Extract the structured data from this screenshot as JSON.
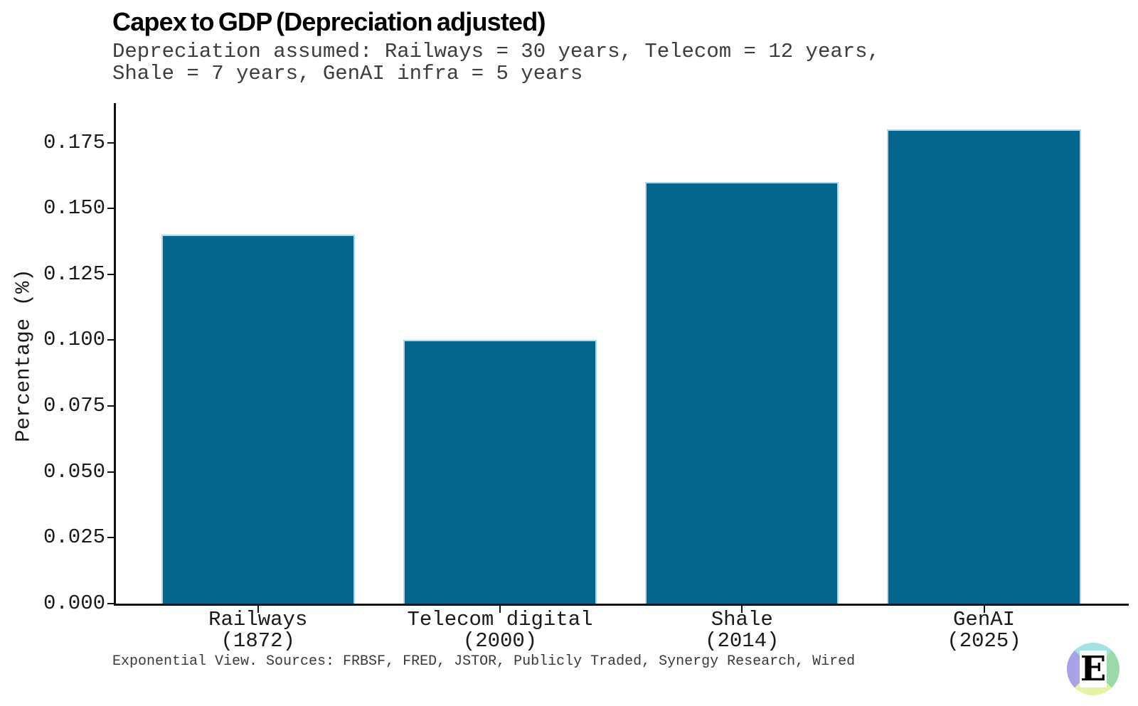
{
  "chart_data": {
    "type": "bar",
    "title": "Capex to GDP (Depreciation adjusted)",
    "subtitle": "Depreciation assumed: Railways = 30 years, Telecom = 12 years,\nShale = 7 years, GenAI infra = 5 years",
    "ylabel": "Percentage (%)",
    "xlabel": "",
    "categories": [
      {
        "label": "Railways",
        "year": "(1872)"
      },
      {
        "label": "Telecom digital",
        "year": "(2000)"
      },
      {
        "label": "Shale",
        "year": "(2014)"
      },
      {
        "label": "GenAI",
        "year": "(2025)"
      }
    ],
    "values": [
      0.14,
      0.1,
      0.16,
      0.18
    ],
    "yticks": [
      0.0,
      0.025,
      0.05,
      0.075,
      0.1,
      0.125,
      0.15,
      0.175
    ],
    "ylim": [
      0,
      0.19
    ],
    "grid": false,
    "legend": "none",
    "bar_color": "#05668d",
    "bar_edge_color": "#b5d7e9",
    "source": "Exponential View. Sources: FRBSF, FRED, JSTOR, Publicly Traded, Synergy Research, Wired"
  },
  "logo": {
    "name": "Exponential View logo",
    "letter": "E",
    "colors": {
      "top": "#a6e1e3",
      "right": "#9cd9a8",
      "bottom": "#e7f2a3",
      "left": "#a8a2e9"
    }
  }
}
